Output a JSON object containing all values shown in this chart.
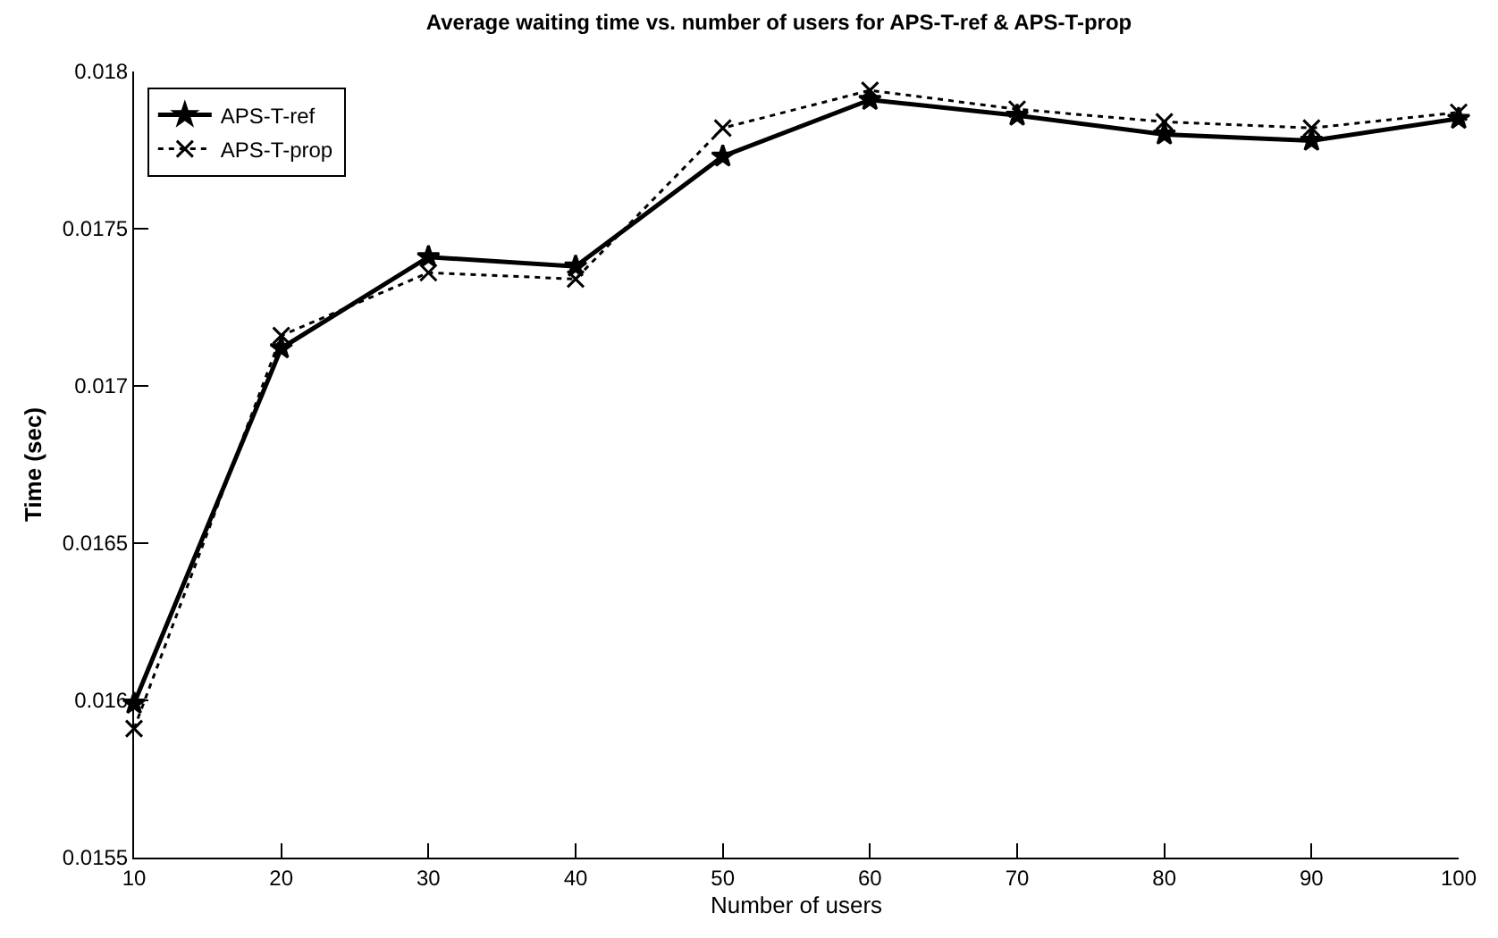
{
  "chart_data": {
    "type": "line",
    "title": "Average waiting time vs. number of users for APS-T-ref & APS-T-prop",
    "xlabel": "Number of users",
    "ylabel": "Time (sec)",
    "x": [
      10,
      20,
      30,
      40,
      50,
      60,
      70,
      80,
      90,
      100
    ],
    "series": [
      {
        "name": "APS-T-ref",
        "color": "#000000",
        "marker": "star",
        "line_style": "solid",
        "values": [
          0.01599,
          0.01712,
          0.01741,
          0.01738,
          0.01773,
          0.01791,
          0.01786,
          0.0178,
          0.01778,
          0.01785
        ]
      },
      {
        "name": "APS-T-prop",
        "color": "#000000",
        "marker": "cross",
        "line_style": "dotted",
        "values": [
          0.01591,
          0.01716,
          0.01736,
          0.01734,
          0.01782,
          0.01794,
          0.01788,
          0.01784,
          0.01782,
          0.01787
        ]
      }
    ],
    "xlim": [
      10,
      100
    ],
    "xticks": [
      10,
      20,
      30,
      40,
      50,
      60,
      70,
      80,
      90,
      100
    ],
    "ylim": [
      0.0155,
      0.018
    ],
    "yticks": [
      0.0155,
      0.016,
      0.0165,
      0.017,
      0.0175,
      0.018
    ],
    "grid": false,
    "legend": "top left"
  }
}
